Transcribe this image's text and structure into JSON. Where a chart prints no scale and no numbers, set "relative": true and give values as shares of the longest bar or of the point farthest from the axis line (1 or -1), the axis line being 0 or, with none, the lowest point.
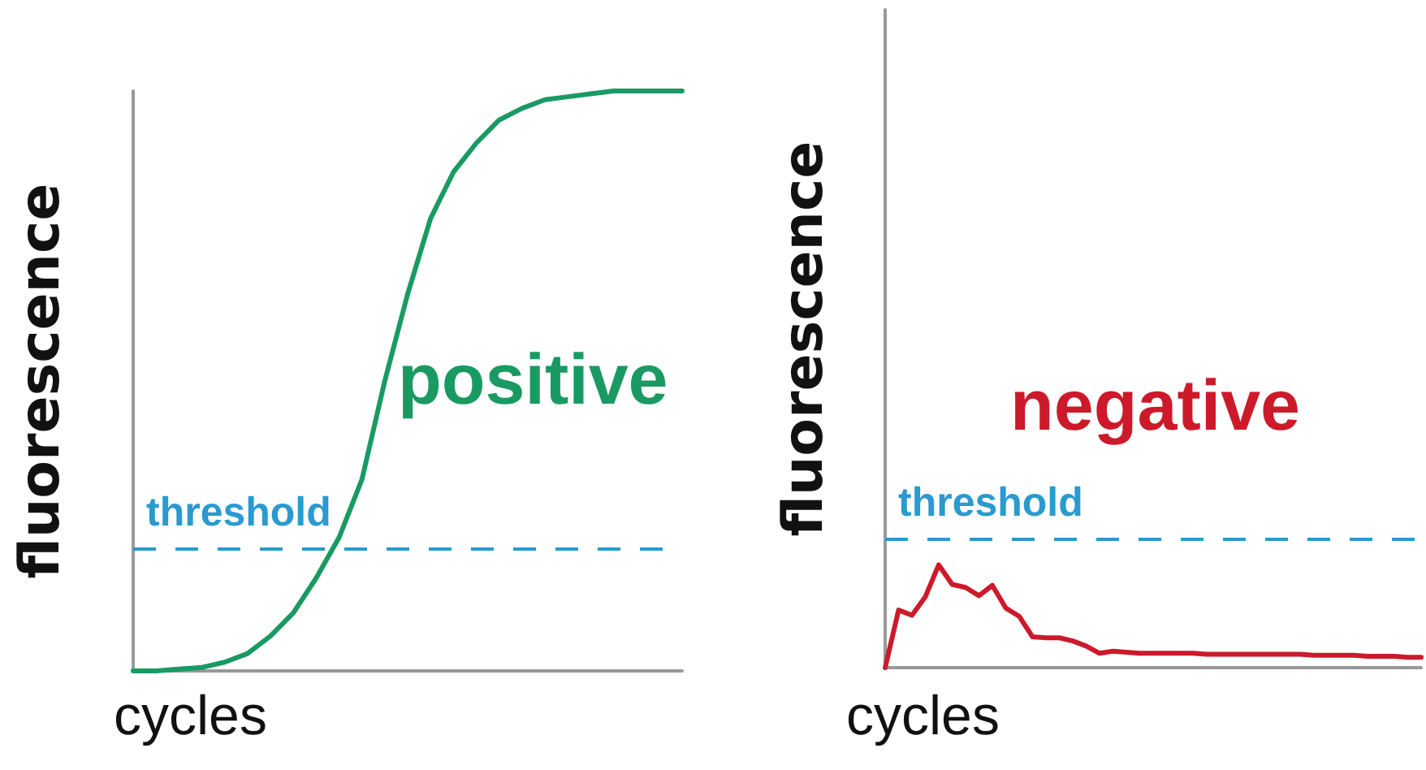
{
  "chart_data": [
    {
      "type": "line",
      "relative": true,
      "xlabel": "cycles",
      "ylabel": "fluorescence",
      "annotations": [
        "positive"
      ],
      "categories": [
        null,
        null,
        null,
        null,
        null,
        null,
        null,
        null,
        null,
        null,
        null,
        null,
        null,
        null,
        null,
        null,
        null,
        null,
        null,
        null,
        null,
        null,
        null,
        null,
        null
      ],
      "series": [
        {
          "color": "#1a9a63",
          "values": [
            0,
            0,
            0.003,
            0.006,
            0.015,
            0.03,
            0.06,
            0.1,
            0.16,
            0.23,
            0.33,
            0.5,
            0.65,
            0.78,
            0.86,
            0.91,
            0.95,
            0.97,
            0.985,
            0.99,
            0.995,
            1,
            1,
            1,
            1
          ]
        }
      ],
      "ref_lines": [
        {
          "axis": "y",
          "value": 0.213,
          "label": "threshold",
          "color": "#2a9ad0",
          "line_style": "dashed"
        }
      ],
      "marker": "none",
      "line_style": "solid"
    },
    {
      "type": "line",
      "relative": true,
      "xlabel": "cycles",
      "ylabel": "fluorescence",
      "annotations": [
        "negative"
      ],
      "categories": [
        null,
        null,
        null,
        null,
        null,
        null,
        null,
        null,
        null,
        null,
        null,
        null,
        null,
        null,
        null,
        null,
        null,
        null,
        null,
        null,
        null,
        null,
        null,
        null,
        null,
        null,
        null,
        null,
        null,
        null,
        null,
        null,
        null,
        null,
        null,
        null,
        null,
        null,
        null,
        null,
        null
      ],
      "series": [
        {
          "color": "#cc1a2a",
          "values": [
            0,
            0.56,
            0.51,
            0.69,
            1,
            0.81,
            0.78,
            0.7,
            0.8,
            0.58,
            0.5,
            0.3,
            0.29,
            0.29,
            0.26,
            0.21,
            0.14,
            0.16,
            0.15,
            0.14,
            0.14,
            0.14,
            0.14,
            0.14,
            0.13,
            0.13,
            0.13,
            0.13,
            0.13,
            0.13,
            0.13,
            0.13,
            0.12,
            0.12,
            0.12,
            0.12,
            0.11,
            0.11,
            0.11,
            0.1,
            0.1
          ]
        }
      ],
      "ref_lines": [
        {
          "axis": "y",
          "value": 1.25,
          "label": "threshold",
          "color": "#2a9ad0",
          "line_style": "dashed"
        }
      ],
      "marker": "none",
      "line_style": "solid"
    }
  ]
}
